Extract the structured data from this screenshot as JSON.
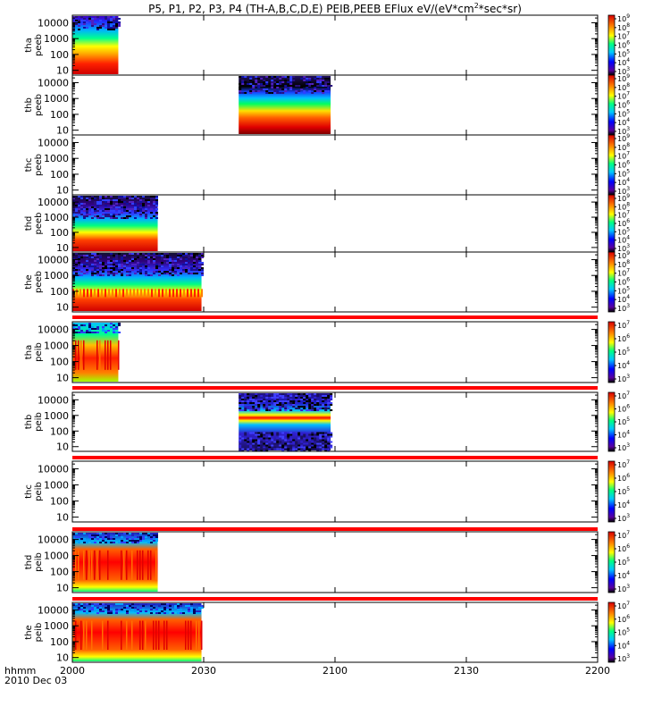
{
  "title_parts": [
    "P5, P1, P2, P3, P4 (TH-A,B,C,D,E) PEIB,PEEB EFlux eV/(eV*cm",
    "2",
    "*sec*sr)"
  ],
  "bottom": {
    "hhmm_label": "hhmm",
    "date_label": "2010 Dec 03"
  },
  "colors": {
    "axis": "#000000",
    "background": "#ffffff",
    "separator": "#ff0000"
  },
  "chart_data": {
    "type": "heatmap",
    "x_ticks": [
      "2000",
      "2030",
      "2100",
      "2130",
      "2200"
    ],
    "x_tick_minutes": [
      0,
      30,
      60,
      90,
      120
    ],
    "xlim_minutes": [
      0,
      120
    ],
    "panels": [
      {
        "probe": "tha",
        "product": "peeb",
        "y_ticks": [
          "10",
          "100",
          "1000",
          "10000"
        ],
        "colorbar_ticks": [
          "10",
          "10",
          "10",
          "10",
          "10",
          "10",
          "10"
        ],
        "colorbar_exps": [
          "3",
          "4",
          "5",
          "6",
          "7",
          "8",
          "9"
        ],
        "data_start": 0,
        "data_end": 10.5,
        "style": "electron_tha"
      },
      {
        "probe": "thb",
        "product": "peeb",
        "y_ticks": [
          "10",
          "100",
          "1000",
          "10000"
        ],
        "colorbar_ticks": [
          "10",
          "10",
          "10",
          "10",
          "10",
          "10",
          "10"
        ],
        "colorbar_exps": [
          "3",
          "4",
          "5",
          "6",
          "7",
          "8",
          "9"
        ],
        "data_start": 38,
        "data_end": 59,
        "style": "electron_thb"
      },
      {
        "probe": "thc",
        "product": "peeb",
        "y_ticks": [
          "10",
          "100",
          "1000",
          "10000"
        ],
        "colorbar_ticks": [
          "10",
          "10",
          "10",
          "10",
          "10",
          "10",
          "10"
        ],
        "colorbar_exps": [
          "3",
          "4",
          "5",
          "6",
          "7",
          "8",
          "9"
        ],
        "data_start": null,
        "data_end": null,
        "style": "none"
      },
      {
        "probe": "thd",
        "product": "peeb",
        "y_ticks": [
          "10",
          "100",
          "1000",
          "10000"
        ],
        "colorbar_ticks": [
          "10",
          "10",
          "10",
          "10",
          "10",
          "10",
          "10"
        ],
        "colorbar_exps": [
          "3",
          "4",
          "5",
          "6",
          "7",
          "8",
          "9"
        ],
        "data_start": 0,
        "data_end": 19.5,
        "style": "electron_thd"
      },
      {
        "probe": "the",
        "product": "peeb",
        "y_ticks": [
          "10",
          "100",
          "1000",
          "10000"
        ],
        "colorbar_ticks": [
          "10",
          "10",
          "10",
          "10",
          "10",
          "10",
          "10"
        ],
        "colorbar_exps": [
          "3",
          "4",
          "5",
          "6",
          "7",
          "8",
          "9"
        ],
        "data_start": 0,
        "data_end": 29.5,
        "style": "electron_the"
      },
      {
        "probe": "tha",
        "product": "peib",
        "y_ticks": [
          "10",
          "100",
          "1000",
          "10000"
        ],
        "colorbar_ticks": [
          "10",
          "10",
          "10",
          "10",
          "10"
        ],
        "colorbar_exps": [
          "3",
          "4",
          "5",
          "6",
          "7"
        ],
        "data_start": 0,
        "data_end": 10.5,
        "style": "ion_tha"
      },
      {
        "probe": "thb",
        "product": "peib",
        "y_ticks": [
          "10",
          "100",
          "1000",
          "10000"
        ],
        "colorbar_ticks": [
          "10",
          "10",
          "10",
          "10",
          "10"
        ],
        "colorbar_exps": [
          "3",
          "4",
          "5",
          "6",
          "7"
        ],
        "data_start": 38,
        "data_end": 59,
        "style": "ion_thb"
      },
      {
        "probe": "thc",
        "product": "peib",
        "y_ticks": [
          "10",
          "100",
          "1000",
          "10000"
        ],
        "colorbar_ticks": [
          "10",
          "10",
          "10",
          "10",
          "10"
        ],
        "colorbar_exps": [
          "3",
          "4",
          "5",
          "6",
          "7"
        ],
        "data_start": null,
        "data_end": null,
        "style": "none"
      },
      {
        "probe": "thd",
        "product": "peib",
        "y_ticks": [
          "10",
          "100",
          "1000",
          "10000"
        ],
        "colorbar_ticks": [
          "10",
          "10",
          "10",
          "10",
          "10"
        ],
        "colorbar_exps": [
          "3",
          "4",
          "5",
          "6",
          "7"
        ],
        "data_start": 0,
        "data_end": 19.5,
        "style": "ion_thd"
      },
      {
        "probe": "the",
        "product": "peib",
        "y_ticks": [
          "10",
          "100",
          "1000",
          "10000"
        ],
        "colorbar_ticks": [
          "10",
          "10",
          "10",
          "10",
          "10"
        ],
        "colorbar_exps": [
          "3",
          "4",
          "5",
          "6",
          "7"
        ],
        "data_start": 0,
        "data_end": 29.5,
        "style": "ion_the"
      }
    ]
  }
}
